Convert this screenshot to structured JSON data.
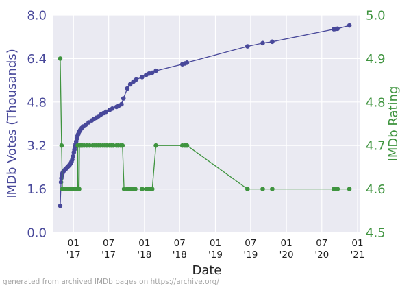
{
  "chart_data": {
    "type": "line",
    "xlabel": "Date",
    "left_axis": {
      "label": "IMDb Votes (Thousands)",
      "range": [
        0.0,
        8.0
      ],
      "ticks": [
        "0.0",
        "1.6",
        "3.2",
        "4.8",
        "6.4",
        "8.0"
      ],
      "color": "#48489a"
    },
    "right_axis": {
      "label": "IMDb Rating",
      "range": [
        4.5,
        5.0
      ],
      "ticks": [
        "4.5",
        "4.6",
        "4.7",
        "4.8",
        "4.9",
        "5.0"
      ],
      "color": "#3f943f"
    },
    "x_range": [
      "2016-09-20",
      "2021-01-15"
    ],
    "x_ticks": [
      {
        "date": "2017-01-01",
        "line1": "01",
        "line2": "'17"
      },
      {
        "date": "2017-07-01",
        "line1": "07",
        "line2": "'17"
      },
      {
        "date": "2018-01-01",
        "line1": "01",
        "line2": "'18"
      },
      {
        "date": "2018-07-01",
        "line1": "07",
        "line2": "'18"
      },
      {
        "date": "2019-01-01",
        "line1": "01",
        "line2": "'19"
      },
      {
        "date": "2019-07-01",
        "line1": "07",
        "line2": "'19"
      },
      {
        "date": "2020-01-01",
        "line1": "01",
        "line2": "'20"
      },
      {
        "date": "2020-07-01",
        "line1": "07",
        "line2": "'20"
      },
      {
        "date": "2021-01-01",
        "line1": "01",
        "line2": "'21"
      }
    ],
    "grid": true,
    "series": [
      {
        "axis": "left",
        "color": "#48489a",
        "points": [
          [
            "2016-10-25",
            0.98
          ],
          [
            "2016-10-29",
            1.85
          ],
          [
            "2016-10-31",
            2.0
          ],
          [
            "2016-11-02",
            2.08
          ],
          [
            "2016-11-04",
            2.15
          ],
          [
            "2016-11-06",
            2.18
          ],
          [
            "2016-11-08",
            2.22
          ],
          [
            "2016-11-12",
            2.26
          ],
          [
            "2016-11-16",
            2.29
          ],
          [
            "2016-11-20",
            2.32
          ],
          [
            "2016-11-24",
            2.35
          ],
          [
            "2016-11-28",
            2.38
          ],
          [
            "2016-12-02",
            2.41
          ],
          [
            "2016-12-06",
            2.44
          ],
          [
            "2016-12-10",
            2.47
          ],
          [
            "2016-12-14",
            2.5
          ],
          [
            "2016-12-18",
            2.55
          ],
          [
            "2016-12-22",
            2.6
          ],
          [
            "2016-12-26",
            2.68
          ],
          [
            "2016-12-30",
            2.8
          ],
          [
            "2017-01-03",
            2.95
          ],
          [
            "2017-01-06",
            3.05
          ],
          [
            "2017-01-09",
            3.15
          ],
          [
            "2017-01-12",
            3.25
          ],
          [
            "2017-01-15",
            3.35
          ],
          [
            "2017-01-18",
            3.45
          ],
          [
            "2017-01-22",
            3.55
          ],
          [
            "2017-01-26",
            3.62
          ],
          [
            "2017-01-30",
            3.7
          ],
          [
            "2017-02-05",
            3.77
          ],
          [
            "2017-02-12",
            3.84
          ],
          [
            "2017-02-20",
            3.9
          ],
          [
            "2017-03-05",
            3.96
          ],
          [
            "2017-03-20",
            4.05
          ],
          [
            "2017-04-05",
            4.12
          ],
          [
            "2017-04-15",
            4.17
          ],
          [
            "2017-04-28",
            4.22
          ],
          [
            "2017-05-10",
            4.28
          ],
          [
            "2017-05-22",
            4.34
          ],
          [
            "2017-06-05",
            4.39
          ],
          [
            "2017-06-18",
            4.44
          ],
          [
            "2017-07-05",
            4.5
          ],
          [
            "2017-07-20",
            4.56
          ],
          [
            "2017-08-10",
            4.62
          ],
          [
            "2017-08-22",
            4.67
          ],
          [
            "2017-09-05",
            4.72
          ],
          [
            "2017-09-15",
            4.93
          ],
          [
            "2017-10-05",
            5.3
          ],
          [
            "2017-10-20",
            5.45
          ],
          [
            "2017-11-05",
            5.55
          ],
          [
            "2017-11-20",
            5.63
          ],
          [
            "2017-12-20",
            5.72
          ],
          [
            "2018-01-10",
            5.8
          ],
          [
            "2018-01-25",
            5.85
          ],
          [
            "2018-02-10",
            5.88
          ],
          [
            "2018-03-01",
            5.95
          ],
          [
            "2018-07-15",
            6.19
          ],
          [
            "2018-07-28",
            6.22
          ],
          [
            "2018-08-08",
            6.25
          ],
          [
            "2019-06-15",
            6.85
          ],
          [
            "2019-09-01",
            6.97
          ],
          [
            "2019-10-20",
            7.02
          ],
          [
            "2020-09-01",
            7.48
          ],
          [
            "2020-09-10",
            7.49
          ],
          [
            "2020-09-20",
            7.5
          ],
          [
            "2020-11-20",
            7.62
          ]
        ]
      },
      {
        "axis": "right",
        "color": "#3f943f",
        "points": [
          [
            "2016-10-25",
            4.9
          ],
          [
            "2016-11-01",
            4.7
          ],
          [
            "2016-11-05",
            4.6
          ],
          [
            "2016-11-08",
            4.6
          ],
          [
            "2016-11-12",
            4.6
          ],
          [
            "2016-11-16",
            4.6
          ],
          [
            "2016-11-20",
            4.6
          ],
          [
            "2016-11-24",
            4.6
          ],
          [
            "2016-11-28",
            4.6
          ],
          [
            "2016-12-02",
            4.6
          ],
          [
            "2016-12-06",
            4.6
          ],
          [
            "2016-12-10",
            4.6
          ],
          [
            "2016-12-14",
            4.6
          ],
          [
            "2016-12-18",
            4.6
          ],
          [
            "2016-12-22",
            4.6
          ],
          [
            "2016-12-26",
            4.6
          ],
          [
            "2016-12-30",
            4.6
          ],
          [
            "2017-01-03",
            4.6
          ],
          [
            "2017-01-07",
            4.6
          ],
          [
            "2017-01-10",
            4.6
          ],
          [
            "2017-01-13",
            4.6
          ],
          [
            "2017-01-16",
            4.6
          ],
          [
            "2017-01-19",
            4.6
          ],
          [
            "2017-01-21",
            4.6
          ],
          [
            "2017-01-23",
            4.7
          ],
          [
            "2017-01-26",
            4.6
          ],
          [
            "2017-01-28",
            4.6
          ],
          [
            "2017-01-30",
            4.6
          ],
          [
            "2017-02-01",
            4.7
          ],
          [
            "2017-02-08",
            4.7
          ],
          [
            "2017-02-15",
            4.7
          ],
          [
            "2017-02-25",
            4.7
          ],
          [
            "2017-03-10",
            4.7
          ],
          [
            "2017-03-25",
            4.7
          ],
          [
            "2017-04-10",
            4.7
          ],
          [
            "2017-04-20",
            4.7
          ],
          [
            "2017-04-30",
            4.7
          ],
          [
            "2017-05-10",
            4.7
          ],
          [
            "2017-05-20",
            4.7
          ],
          [
            "2017-06-01",
            4.7
          ],
          [
            "2017-06-12",
            4.7
          ],
          [
            "2017-06-22",
            4.7
          ],
          [
            "2017-07-05",
            4.7
          ],
          [
            "2017-07-15",
            4.7
          ],
          [
            "2017-07-25",
            4.7
          ],
          [
            "2017-08-10",
            4.7
          ],
          [
            "2017-08-20",
            4.7
          ],
          [
            "2017-09-01",
            4.7
          ],
          [
            "2017-09-10",
            4.7
          ],
          [
            "2017-09-18",
            4.6
          ],
          [
            "2017-10-05",
            4.6
          ],
          [
            "2017-10-20",
            4.6
          ],
          [
            "2017-11-05",
            4.6
          ],
          [
            "2017-11-15",
            4.6
          ],
          [
            "2017-12-20",
            4.6
          ],
          [
            "2018-01-10",
            4.6
          ],
          [
            "2018-01-25",
            4.6
          ],
          [
            "2018-02-10",
            4.6
          ],
          [
            "2018-03-01",
            4.7
          ],
          [
            "2018-07-15",
            4.7
          ],
          [
            "2018-07-28",
            4.7
          ],
          [
            "2018-08-08",
            4.7
          ],
          [
            "2019-06-15",
            4.6
          ],
          [
            "2019-09-01",
            4.6
          ],
          [
            "2019-10-20",
            4.6
          ],
          [
            "2020-09-01",
            4.6
          ],
          [
            "2020-09-10",
            4.6
          ],
          [
            "2020-09-20",
            4.6
          ],
          [
            "2020-11-20",
            4.6
          ]
        ]
      }
    ]
  },
  "footer": "generated from archived IMDb pages on https://archive.org/"
}
